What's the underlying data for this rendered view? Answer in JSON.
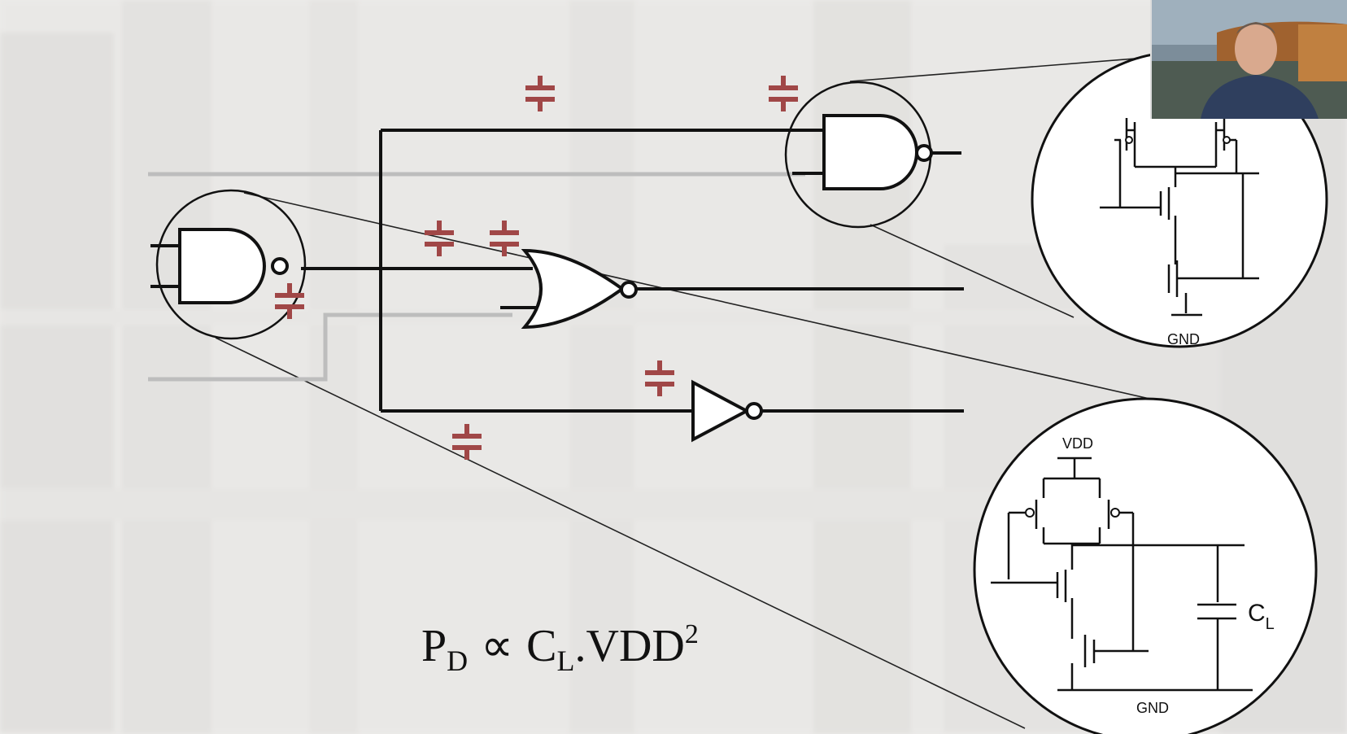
{
  "diagram": {
    "labels": {
      "vdd": "VDD",
      "gnd_top": "GND",
      "gnd_bottom": "GND",
      "cl_main": "C",
      "cl_sub": "L"
    },
    "formula": {
      "p": "P",
      "p_sub": "D",
      "propto": "∝",
      "c": "C",
      "c_sub": "L",
      "rest": ".VDD",
      "exp": "2"
    },
    "capacitor_color": "#a04747"
  },
  "webcam": {
    "icon": "presenter-video-icon"
  }
}
